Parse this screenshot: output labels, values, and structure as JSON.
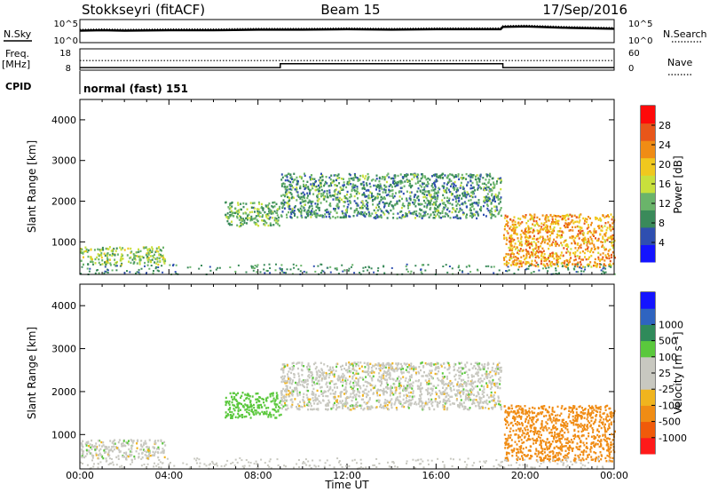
{
  "header": {
    "station": "Stokkseyri (fitACF)",
    "beam": "Beam 15",
    "date": "17/Sep/2016"
  },
  "panels": {
    "noise": {
      "left_label": "N.Sky",
      "right_label": "N.Search",
      "ytick_top": "10^5",
      "ytick_bottom": "10^0"
    },
    "freq": {
      "left_label_1": "Freq.",
      "left_label_2": "[MHz]",
      "left_ticks": [
        "18",
        "8"
      ],
      "right_ticks": [
        "60",
        "0"
      ],
      "right_label": "Nave"
    },
    "cpid": {
      "label": "CPID",
      "value": "normal (fast) 151"
    }
  },
  "colors": {
    "power_scale": [
      "#1414ff",
      "#2f4fb0",
      "#3a8a5a",
      "#6ab46a",
      "#c8e03c",
      "#f0c81e",
      "#f08c14",
      "#e8561a",
      "#ff0a0a"
    ],
    "velocity_scale": [
      "#ff1a1a",
      "#f05a0a",
      "#f08c14",
      "#f0b41e",
      "#c8c8c0",
      "#c8c8c0",
      "#5ac83c",
      "#2f8a5a",
      "#2f64c0",
      "#1414ff"
    ],
    "velocity_ground": "#c8c8c0"
  },
  "chart_data": [
    {
      "type": "line",
      "panel": "noise",
      "x_units": "hours UT",
      "series": [
        {
          "x": [
            0,
            1,
            2,
            4,
            6,
            8,
            10,
            12,
            14,
            16,
            18,
            18.9,
            19,
            20,
            22,
            24
          ],
          "y": [
            2.6,
            2.7,
            2.6,
            2.7,
            2.7,
            2.8,
            2.8,
            2.9,
            2.8,
            2.9,
            2.9,
            2.9,
            3.4,
            3.5,
            3.2,
            3.0
          ]
        }
      ],
      "ylim": [
        0,
        5
      ]
    },
    {
      "type": "line",
      "panel": "frequency",
      "x_units": "hours UT",
      "series": [
        {
          "x": [
            0,
            9,
            9,
            19,
            19,
            24
          ],
          "y": [
            9.2,
            9.2,
            11.0,
            11.0,
            9.2,
            9.2
          ]
        },
        {
          "x": [
            0,
            24
          ],
          "y": [
            12.5,
            12.5
          ]
        }
      ],
      "ylim": [
        8,
        18
      ]
    },
    {
      "type": "heatmap",
      "title": "",
      "xlabel": "Time UT",
      "ylabel": "Slant Range [km]",
      "x_ticks": [
        "00:00",
        "04:00",
        "08:00",
        "12:00",
        "16:00",
        "20:00",
        "00:00"
      ],
      "xlim": [
        0,
        24
      ],
      "y_ticks": [
        "1000",
        "2000",
        "3000",
        "4000"
      ],
      "ylim": [
        200,
        4500
      ],
      "colorbar": {
        "label": "Power [dB]",
        "ticks": [
          "4",
          "8",
          "12",
          "16",
          "20",
          "24",
          "28"
        ],
        "range": [
          0,
          32
        ]
      },
      "regions": [
        {
          "x": [
            0.0,
            3.8
          ],
          "y": [
            450,
            900
          ],
          "value": 14
        },
        {
          "x": [
            6.5,
            9.0
          ],
          "y": [
            1400,
            2000
          ],
          "value": 12
        },
        {
          "x": [
            9.0,
            18.9
          ],
          "y": [
            1600,
            2700
          ],
          "value": 10
        },
        {
          "x": [
            19.0,
            24.0
          ],
          "y": [
            400,
            1700
          ],
          "value": 22
        }
      ]
    },
    {
      "type": "heatmap",
      "title": "",
      "xlabel": "Time UT",
      "ylabel": "Slant Range [km]",
      "x_ticks": [
        "00:00",
        "04:00",
        "08:00",
        "12:00",
        "16:00",
        "20:00",
        "00:00"
      ],
      "xlim": [
        0,
        24
      ],
      "y_ticks": [
        "1000",
        "2000",
        "3000",
        "4000"
      ],
      "ylim": [
        200,
        4500
      ],
      "colorbar": {
        "label": "Velocity [m s⁻¹]",
        "ticks": [
          "-1000",
          "-500",
          "-100",
          "-25",
          "25",
          "100",
          "500",
          "1000"
        ]
      },
      "regions": [
        {
          "x": [
            0.0,
            3.8
          ],
          "y": [
            450,
            900
          ],
          "value": 0
        },
        {
          "x": [
            6.5,
            9.0
          ],
          "y": [
            1400,
            2000
          ],
          "value": 60
        },
        {
          "x": [
            9.0,
            18.9
          ],
          "y": [
            1600,
            2700
          ],
          "value": 0
        },
        {
          "x": [
            19.0,
            24.0
          ],
          "y": [
            400,
            1700
          ],
          "value": -200
        }
      ]
    }
  ]
}
